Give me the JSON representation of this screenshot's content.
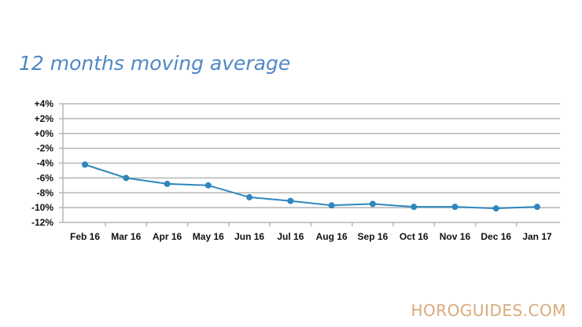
{
  "chart_data": {
    "type": "line",
    "title": "12 months moving average",
    "xlabel": "",
    "ylabel": "",
    "categories": [
      "Feb 16",
      "Mar 16",
      "Apr 16",
      "May 16",
      "Jun 16",
      "Jul 16",
      "Aug 16",
      "Sep 16",
      "Oct 16",
      "Nov 16",
      "Dec 16",
      "Jan 17"
    ],
    "series": [
      {
        "values": [
          -4.2,
          -6.0,
          -6.8,
          -7.0,
          -8.6,
          -9.1,
          -9.7,
          -9.5,
          -9.9,
          -9.9,
          -10.1,
          -9.9
        ]
      }
    ],
    "y_ticks": [
      4,
      2,
      0,
      -2,
      -4,
      -6,
      -8,
      -10,
      -12
    ],
    "y_tick_labels": [
      "+4%",
      "+2%",
      "+0%",
      "-2%",
      "-4%",
      "-6%",
      "-8%",
      "-10%",
      "-12%"
    ],
    "ylim": [
      -12,
      4
    ],
    "grid": true,
    "legend": "none",
    "colors": {
      "line": "#2f86bd",
      "grid": "#b5b5b5",
      "title": "#4f87c5"
    }
  },
  "watermark": "HOROGUIDES.COM"
}
